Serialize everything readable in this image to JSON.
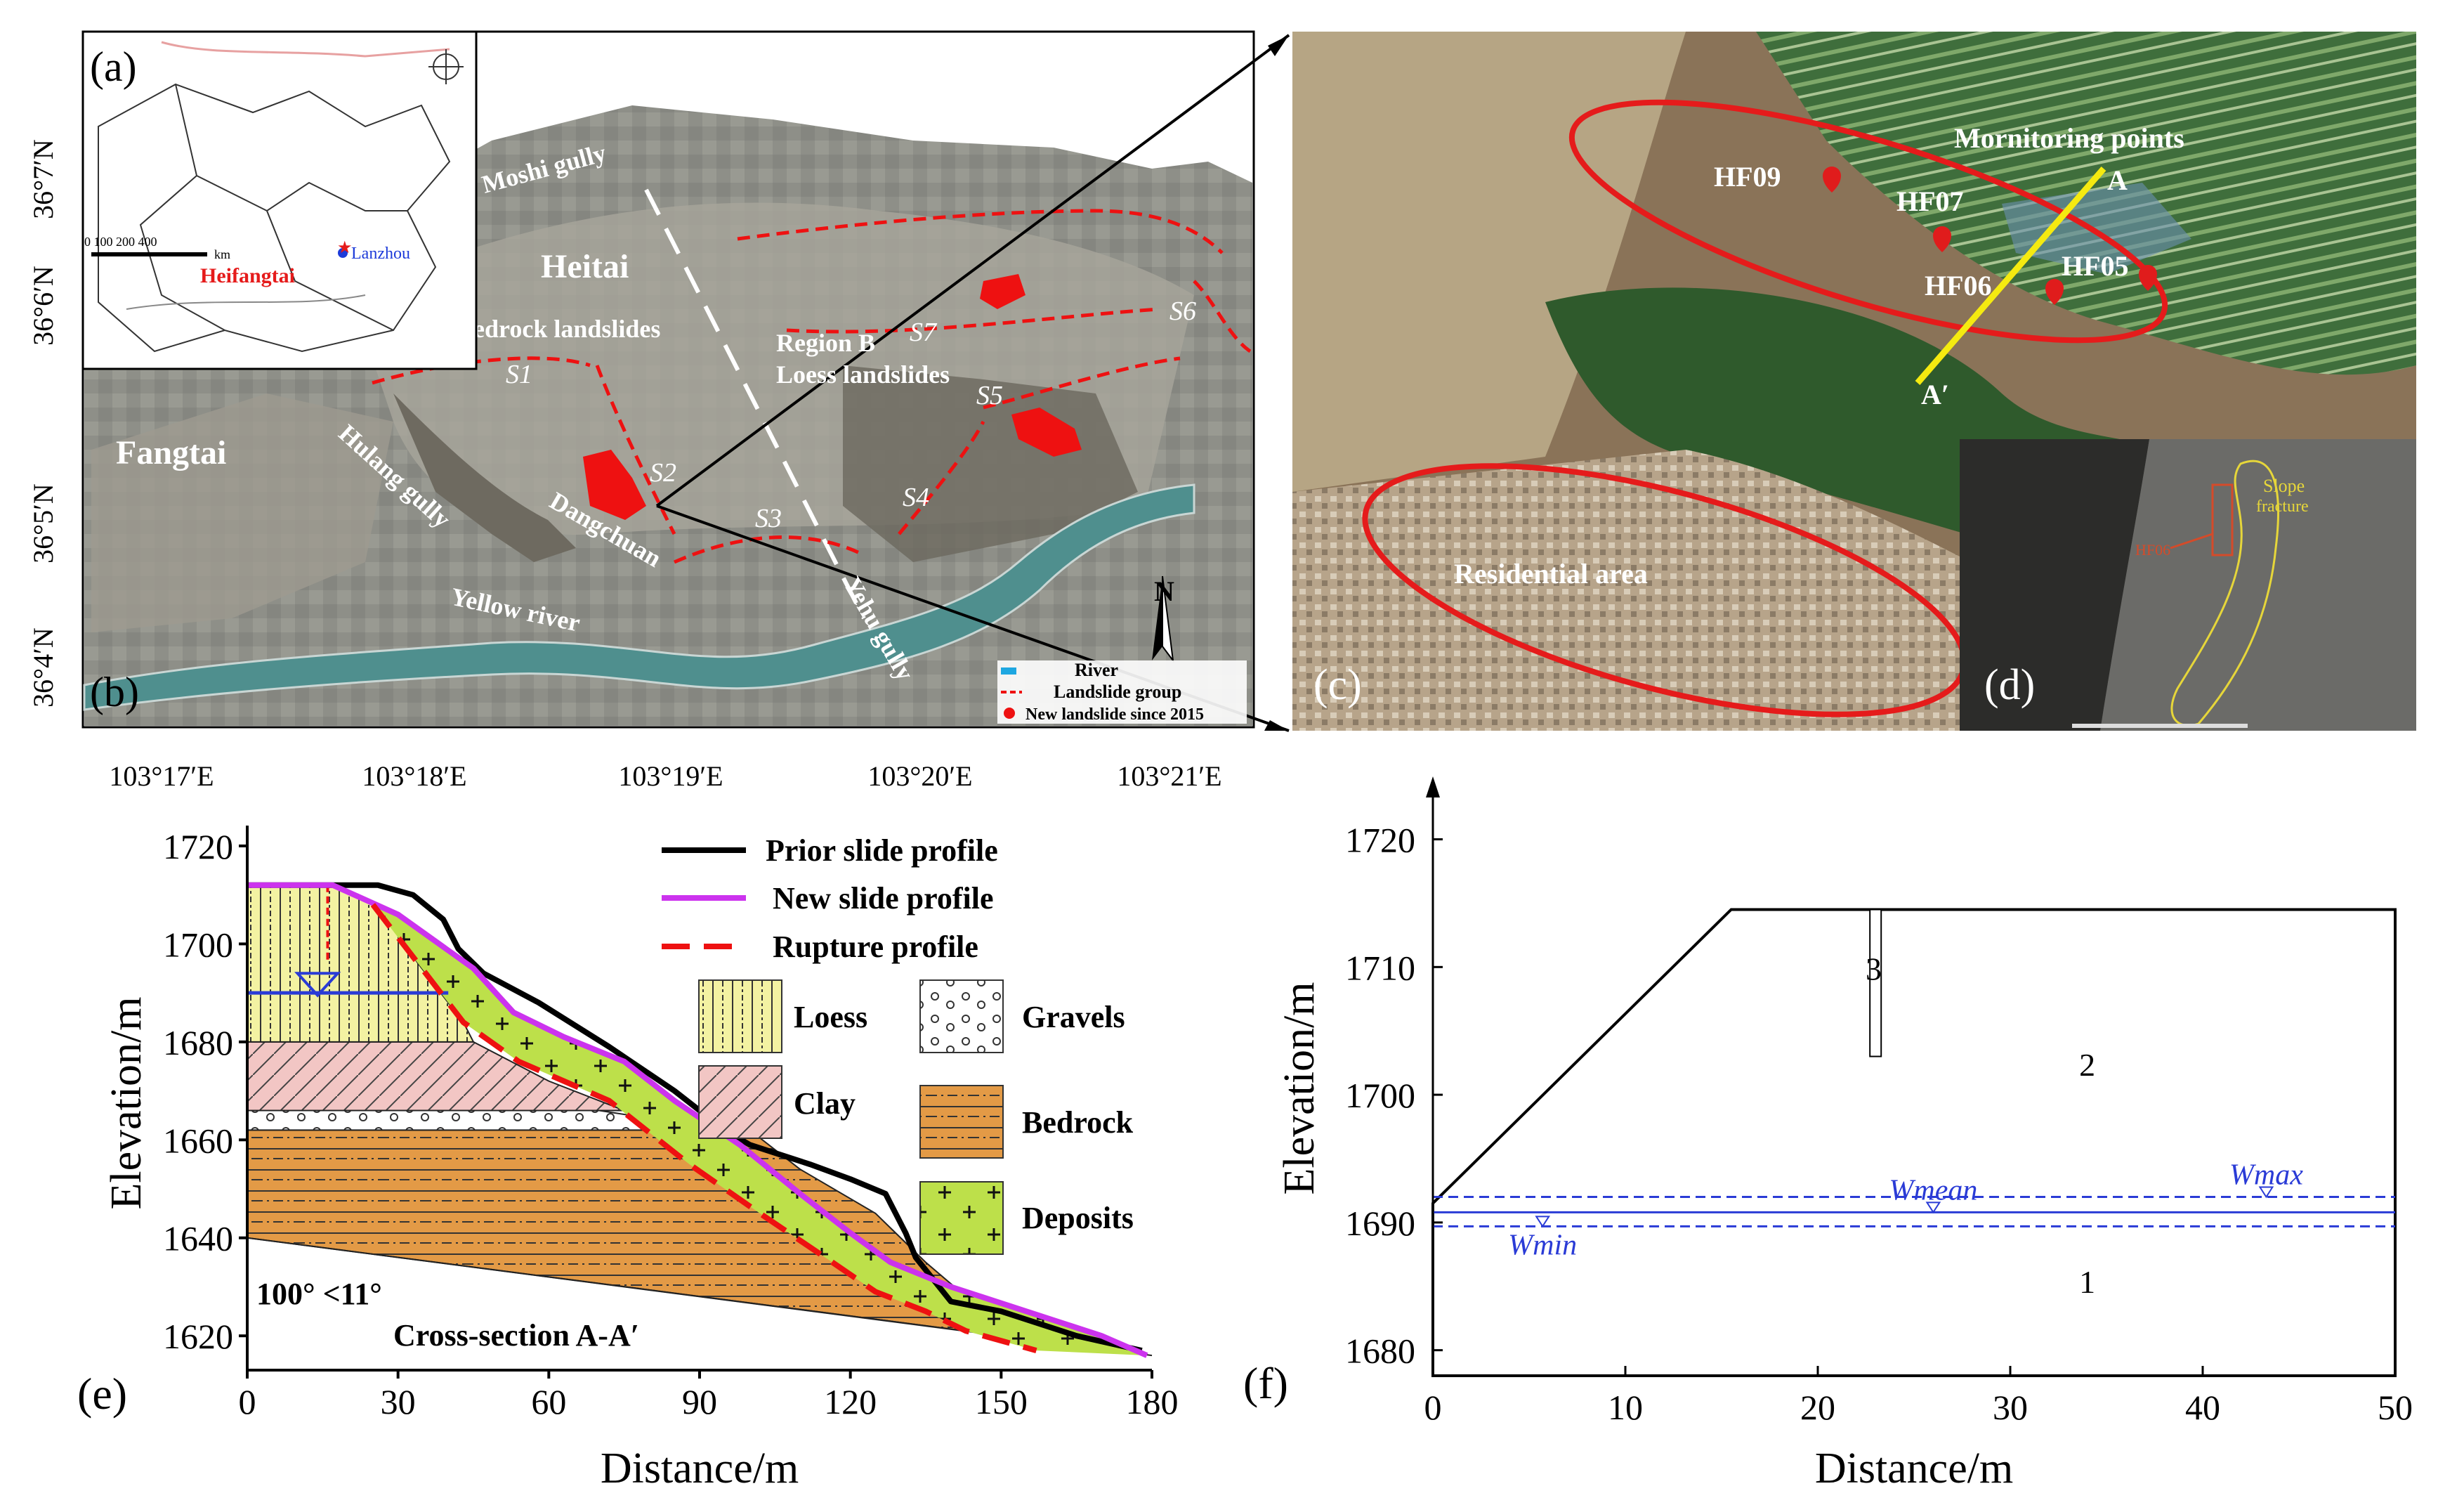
{
  "panels": {
    "a": "(a)",
    "b": "(b)",
    "c": "(c)",
    "d": "(d)",
    "e": "(e)",
    "f": "(f)"
  },
  "map": {
    "lat_ticks": [
      "36°7′N",
      "36°6′N",
      "36°5′N",
      "36°4′N"
    ],
    "lon_ticks": [
      "103°17′E",
      "103°18′E",
      "103°19′E",
      "103°20′E",
      "103°21′E"
    ],
    "places": {
      "heitai": "Heitai",
      "fangtai": "Fangtai",
      "moshi": "Moshi gully",
      "bedrock": "Bedrock landslides",
      "region_b": "Region B",
      "loess_ls": "Loess landslides",
      "hulang": "Hulang gully",
      "dangchuan": "Dangchuan",
      "yellow": "Yellow river",
      "yehu": "Yehu gully"
    },
    "groups": [
      "S1",
      "S2",
      "S3",
      "S4",
      "S5",
      "S6",
      "S7"
    ],
    "legend": {
      "river": "River",
      "group": "Landslide group",
      "new": "New landslide since 2015"
    },
    "north": "N",
    "inset": {
      "scale": "0  100  200       400",
      "km": "km",
      "lanzhou": "Lanzhou",
      "heifangtai": "Heifangtai"
    }
  },
  "satellite": {
    "title": "Mornitoring points",
    "points": [
      "HF09",
      "HF07",
      "HF06",
      "HF05"
    ],
    "a": "A",
    "a_prime": "A′",
    "residential": "Residential area"
  },
  "camera": {
    "slope": "Slope",
    "fracture": "fracture",
    "hf": "HF06"
  },
  "chart_data": [
    {
      "type": "line",
      "title": "Cross-section A-A′",
      "xlabel": "Distance/m",
      "ylabel": "Elevation/m",
      "xlim": [
        0,
        180
      ],
      "ylim": [
        1613,
        1722
      ],
      "x_ticks": [
        0,
        30,
        60,
        90,
        120,
        150,
        180
      ],
      "y_ticks": [
        1620,
        1640,
        1660,
        1680,
        1700,
        1720
      ],
      "annotation": "100°  <11°",
      "series": [
        {
          "name": "Prior slide profile",
          "color": "#000000",
          "points": [
            [
              0,
              1712
            ],
            [
              15,
              1712
            ],
            [
              26,
              1712
            ],
            [
              33,
              1710
            ],
            [
              39,
              1705
            ],
            [
              42,
              1699
            ],
            [
              47,
              1694
            ],
            [
              58,
              1688
            ],
            [
              72,
              1679
            ],
            [
              85,
              1670
            ],
            [
              90,
              1666
            ],
            [
              95,
              1662
            ],
            [
              100,
              1659
            ],
            [
              112,
              1655
            ],
            [
              120,
              1652
            ],
            [
              127,
              1649
            ],
            [
              131,
              1641
            ],
            [
              133,
              1636
            ],
            [
              140,
              1627
            ],
            [
              150,
              1625
            ],
            [
              165,
              1620
            ],
            [
              178,
              1617
            ]
          ]
        },
        {
          "name": "New slide profile",
          "color": "#cc33ee",
          "points": [
            [
              0,
              1712
            ],
            [
              17,
              1712
            ],
            [
              30,
              1706
            ],
            [
              45,
              1695
            ],
            [
              53,
              1686
            ],
            [
              63,
              1681
            ],
            [
              75,
              1676
            ],
            [
              85,
              1668
            ],
            [
              98,
              1659
            ],
            [
              110,
              1649
            ],
            [
              120,
              1641
            ],
            [
              128,
              1635
            ],
            [
              140,
              1630
            ],
            [
              155,
              1625
            ],
            [
              170,
              1620
            ],
            [
              179,
              1616
            ]
          ]
        },
        {
          "name": "Rupture profile",
          "color": "#ee1111",
          "points": [
            [
              25,
              1708
            ],
            [
              34,
              1696
            ],
            [
              43,
              1684
            ],
            [
              54,
              1676
            ],
            [
              72,
              1668
            ],
            [
              88,
              1655
            ],
            [
              102,
              1645
            ],
            [
              115,
              1636
            ],
            [
              125,
              1629
            ],
            [
              135,
              1625
            ],
            [
              143,
              1621
            ],
            [
              157,
              1617
            ]
          ]
        }
      ],
      "layers": [
        "Loess",
        "Clay",
        "Gravels",
        "Bedrock",
        "Deposits"
      ]
    },
    {
      "type": "line",
      "xlabel": "Distance/m",
      "ylabel": "Elevation/m",
      "xlim": [
        0,
        50
      ],
      "ylim": [
        1678,
        1723
      ],
      "x_ticks": [
        0,
        10,
        20,
        30,
        40,
        50
      ],
      "y_ticks": [
        1680,
        1690,
        1700,
        1710,
        1720
      ],
      "outline": [
        [
          0,
          1691.5
        ],
        [
          15.5,
          1714.5
        ],
        [
          50,
          1714.5
        ],
        [
          50,
          1678
        ],
        [
          0,
          1678
        ]
      ],
      "borehole": {
        "x": 23,
        "ytop": 1714.5,
        "ybottom": 1703
      },
      "series": [
        {
          "name": "Wmax",
          "y": 1692.0
        },
        {
          "name": "Wmean",
          "y": 1690.8
        },
        {
          "name": "Wmin",
          "y": 1689.7
        }
      ],
      "regions": [
        "1",
        "2",
        "3"
      ]
    }
  ]
}
